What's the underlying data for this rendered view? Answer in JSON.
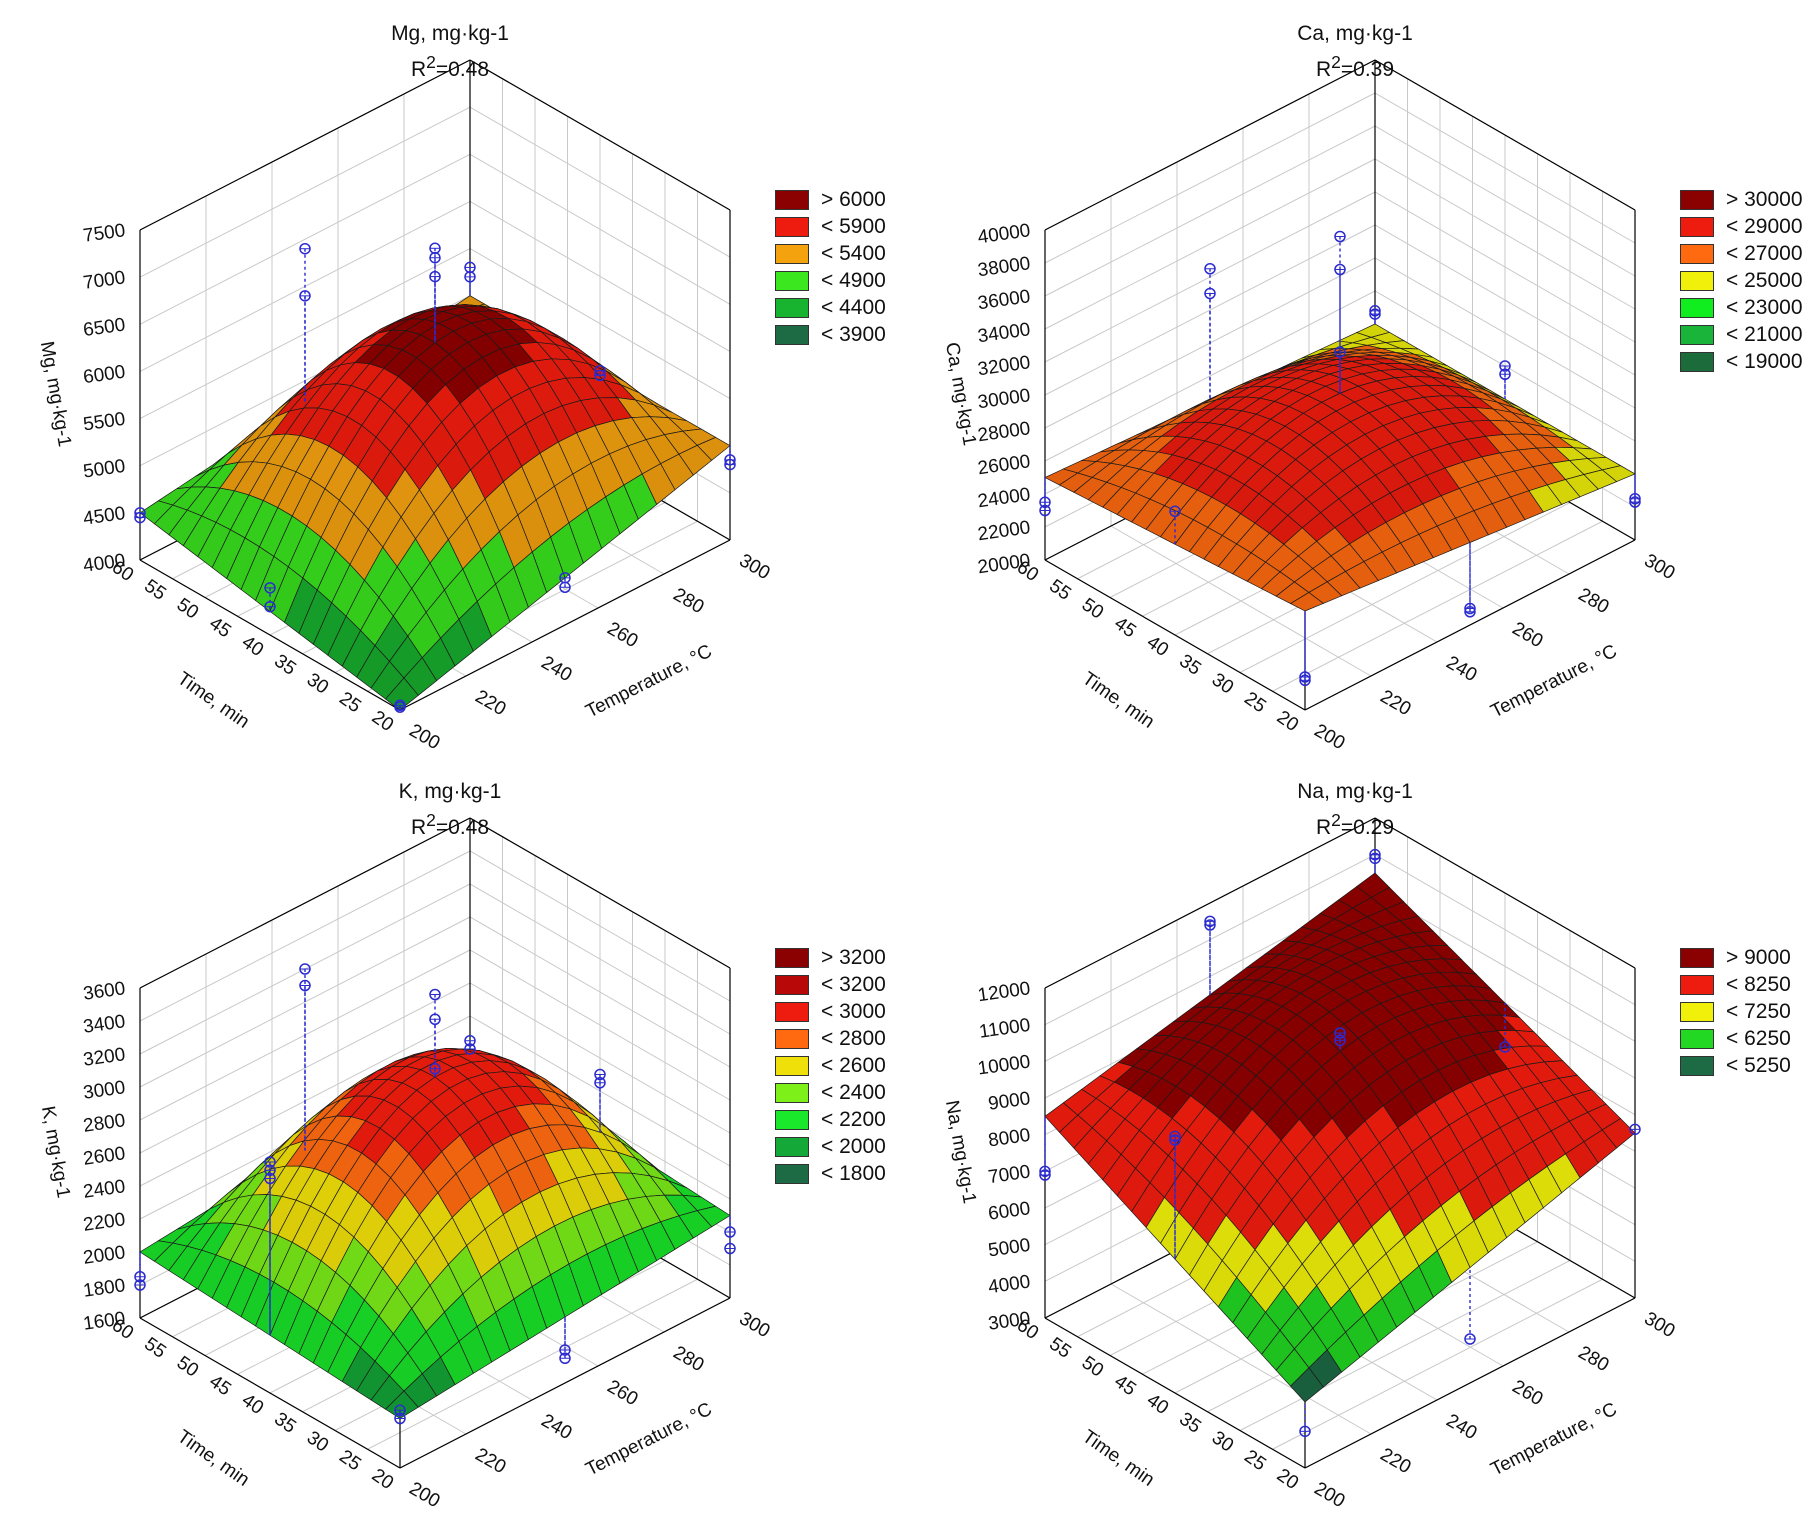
{
  "chart_data": [
    {
      "type": "surface3d",
      "title": "Mg, mg·kg-1",
      "r2_label": "R",
      "r2_value": "=0.48",
      "zlabel": "Mg, mg·kg-1",
      "xlabel": "Temperature, °C",
      "ylabel": "Time, min",
      "x_ticks": [
        "200",
        "220",
        "240",
        "260",
        "280",
        "300"
      ],
      "y_ticks": [
        "20",
        "25",
        "30",
        "35",
        "40",
        "45",
        "50",
        "55",
        "60"
      ],
      "z_ticks": [
        "4000",
        "4500",
        "5000",
        "5500",
        "6000",
        "6500",
        "7000",
        "7500"
      ],
      "xlim": [
        200,
        300
      ],
      "ylim": [
        20,
        60
      ],
      "zlim": [
        4000,
        7500
      ],
      "legend": [
        {
          "label": "> 6000",
          "color": "#8b0000"
        },
        {
          "label": "< 5900",
          "color": "#ee1c0e"
        },
        {
          "label": "< 5400",
          "color": "#f5a20f"
        },
        {
          "label": "< 4900",
          "color": "#3be81f"
        },
        {
          "label": "< 4400",
          "color": "#18b42f"
        },
        {
          "label": "< 3900",
          "color": "#1c6b45"
        }
      ],
      "thresholds": [
        6000,
        5900,
        5400,
        4900,
        4400,
        3900
      ],
      "surface_corners": {
        "T200_t20": 4000,
        "T300_t20": 5000,
        "T200_t60": 4500,
        "T300_t60": 5000,
        "T250_t40": 6200
      },
      "observations": [
        {
          "temp": 200,
          "time": 20,
          "values": [
            4050,
            4030
          ]
        },
        {
          "temp": 200,
          "time": 60,
          "values": [
            4500,
            4450
          ]
        },
        {
          "temp": 300,
          "time": 20,
          "values": [
            4850,
            4800
          ]
        },
        {
          "temp": 300,
          "time": 60,
          "values": [
            5300,
            5200
          ]
        },
        {
          "temp": 250,
          "time": 40,
          "values": [
            7200,
            7100,
            6900
          ]
        },
        {
          "temp": 250,
          "time": 20,
          "values": [
            4500,
            4400
          ]
        },
        {
          "temp": 250,
          "time": 60,
          "values": [
            6400,
            5900
          ]
        },
        {
          "temp": 200,
          "time": 40,
          "values": [
            4500,
            4300
          ]
        },
        {
          "temp": 300,
          "time": 40,
          "values": [
            5000,
            4950
          ]
        }
      ]
    },
    {
      "type": "surface3d",
      "title": "Ca, mg·kg-1",
      "r2_label": "R",
      "r2_value": "=0.39",
      "zlabel": "Ca, mg·kg-1",
      "xlabel": "Temperature, °C",
      "ylabel": "Time, min",
      "x_ticks": [
        "200",
        "220",
        "240",
        "260",
        "280",
        "300"
      ],
      "y_ticks": [
        "20",
        "25",
        "30",
        "35",
        "40",
        "45",
        "50",
        "55",
        "60"
      ],
      "z_ticks": [
        "20000",
        "22000",
        "24000",
        "26000",
        "28000",
        "30000",
        "32000",
        "34000",
        "36000",
        "38000",
        "40000"
      ],
      "xlim": [
        200,
        300
      ],
      "ylim": [
        20,
        60
      ],
      "zlim": [
        20000,
        40000
      ],
      "legend": [
        {
          "label": "> 30000",
          "color": "#8b0000"
        },
        {
          "label": "< 29000",
          "color": "#ee1c0e"
        },
        {
          "label": "< 27000",
          "color": "#ff6a10"
        },
        {
          "label": "< 25000",
          "color": "#f0f00a"
        },
        {
          "label": "< 23000",
          "color": "#10ee20"
        },
        {
          "label": "< 21000",
          "color": "#1ab43a"
        },
        {
          "label": "< 19000",
          "color": "#1c6b3a"
        }
      ],
      "thresholds": [
        30000,
        29000,
        27000,
        25000,
        23000,
        21000,
        19000
      ],
      "surface_corners": {
        "T200_t20": 26000,
        "T300_t20": 24000,
        "T200_t60": 25000,
        "T300_t60": 24000,
        "T250_t40": 29500
      },
      "observations": [
        {
          "temp": 200,
          "time": 20,
          "values": [
            22000,
            21800
          ]
        },
        {
          "temp": 200,
          "time": 60,
          "values": [
            23500,
            23000
          ]
        },
        {
          "temp": 300,
          "time": 20,
          "values": [
            22500,
            22300
          ]
        },
        {
          "temp": 300,
          "time": 60,
          "values": [
            24800,
            24600
          ]
        },
        {
          "temp": 250,
          "time": 40,
          "values": [
            39000,
            37000,
            32000
          ]
        },
        {
          "temp": 250,
          "time": 20,
          "values": [
            21000,
            20800
          ]
        },
        {
          "temp": 250,
          "time": 60,
          "values": [
            32500,
            31000
          ]
        },
        {
          "temp": 200,
          "time": 40,
          "values": [
            27500
          ]
        },
        {
          "temp": 300,
          "time": 40,
          "values": [
            26000,
            25500
          ]
        }
      ]
    },
    {
      "type": "surface3d",
      "title": "K, mg·kg-1",
      "r2_label": "R",
      "r2_value": "=0.48",
      "zlabel": "K, mg·kg-1",
      "xlabel": "Temperature, °C",
      "ylabel": "Time, min",
      "x_ticks": [
        "200",
        "220",
        "240",
        "260",
        "280",
        "300"
      ],
      "y_ticks": [
        "20",
        "25",
        "30",
        "35",
        "40",
        "45",
        "50",
        "55",
        "60"
      ],
      "z_ticks": [
        "1600",
        "1800",
        "2000",
        "2200",
        "2400",
        "2600",
        "2800",
        "3000",
        "3200",
        "3400",
        "3600"
      ],
      "xlim": [
        200,
        300
      ],
      "ylim": [
        20,
        60
      ],
      "zlim": [
        1600,
        3600
      ],
      "legend": [
        {
          "label": "> 3200",
          "color": "#8b0000"
        },
        {
          "label": "< 3200",
          "color": "#b80808"
        },
        {
          "label": "< 3000",
          "color": "#ee1c0e"
        },
        {
          "label": "< 2800",
          "color": "#ff6a10"
        },
        {
          "label": "< 2600",
          "color": "#f0e00a"
        },
        {
          "label": "< 2400",
          "color": "#7cf018"
        },
        {
          "label": "< 2200",
          "color": "#1ae82a"
        },
        {
          "label": "< 2000",
          "color": "#14a838"
        },
        {
          "label": "< 1800",
          "color": "#1c6b45"
        }
      ],
      "thresholds": [
        3200,
        3200,
        3000,
        2800,
        2600,
        2400,
        2200,
        2000,
        1800
      ],
      "surface_corners": {
        "T200_t20": 1900,
        "T300_t20": 2100,
        "T200_t60": 2000,
        "T300_t60": 2200,
        "T250_t40": 3000
      },
      "observations": [
        {
          "temp": 200,
          "time": 20,
          "values": [
            1950,
            1900
          ]
        },
        {
          "temp": 200,
          "time": 60,
          "values": [
            1850,
            1800
          ]
        },
        {
          "temp": 300,
          "time": 20,
          "values": [
            2000,
            1900
          ]
        },
        {
          "temp": 300,
          "time": 60,
          "values": [
            2250,
            2200
          ]
        },
        {
          "temp": 250,
          "time": 40,
          "values": [
            3500,
            3350,
            3050
          ]
        },
        {
          "temp": 250,
          "time": 20,
          "values": [
            1800,
            1750
          ]
        },
        {
          "temp": 250,
          "time": 60,
          "values": [
            3200,
            3100
          ]
        },
        {
          "temp": 200,
          "time": 40,
          "values": [
            3000,
            2950,
            2900
          ]
        },
        {
          "temp": 300,
          "time": 40,
          "values": [
            2500,
            2450
          ]
        }
      ]
    },
    {
      "type": "surface3d",
      "title": "Na, mg·kg-1",
      "r2_label": "R",
      "r2_value": "=0.29",
      "zlabel": "Na, mg·kg-1",
      "xlabel": "Temperature, °C",
      "ylabel": "Time, min",
      "x_ticks": [
        "200",
        "220",
        "240",
        "260",
        "280",
        "300"
      ],
      "y_ticks": [
        "20",
        "25",
        "30",
        "35",
        "40",
        "45",
        "50",
        "55",
        "60"
      ],
      "z_ticks": [
        "3000",
        "4000",
        "5000",
        "6000",
        "7000",
        "8000",
        "9000",
        "10000",
        "11000",
        "12000"
      ],
      "xlim": [
        200,
        300
      ],
      "ylim": [
        20,
        60
      ],
      "zlim": [
        3000,
        12000
      ],
      "legend": [
        {
          "label": "> 9000",
          "color": "#8b0000"
        },
        {
          "label": "< 8250",
          "color": "#ee1c0e"
        },
        {
          "label": "< 7250",
          "color": "#f0f00a"
        },
        {
          "label": "< 6250",
          "color": "#22d822"
        },
        {
          "label": "< 5250",
          "color": "#1c6b45"
        }
      ],
      "thresholds": [
        9000,
        8250,
        7250,
        6250,
        5250
      ],
      "surface_corners": {
        "T200_t20": 4800,
        "T300_t20": 7500,
        "T200_t60": 8500,
        "T300_t60": 10500,
        "T250_t40": 10000
      },
      "observations": [
        {
          "temp": 200,
          "time": 20,
          "values": [
            4000
          ]
        },
        {
          "temp": 200,
          "time": 60,
          "values": [
            7000,
            6900
          ]
        },
        {
          "temp": 300,
          "time": 20,
          "values": [
            7600
          ]
        },
        {
          "temp": 300,
          "time": 60,
          "values": [
            11000,
            10900
          ]
        },
        {
          "temp": 250,
          "time": 40,
          "values": [
            10500,
            10300
          ]
        },
        {
          "temp": 250,
          "time": 20,
          "values": [
            4200
          ]
        },
        {
          "temp": 250,
          "time": 60,
          "values": [
            11500,
            11400
          ]
        },
        {
          "temp": 200,
          "time": 40,
          "values": [
            10000,
            9900
          ]
        },
        {
          "temp": 300,
          "time": 40,
          "values": [
            7800
          ]
        }
      ]
    }
  ]
}
